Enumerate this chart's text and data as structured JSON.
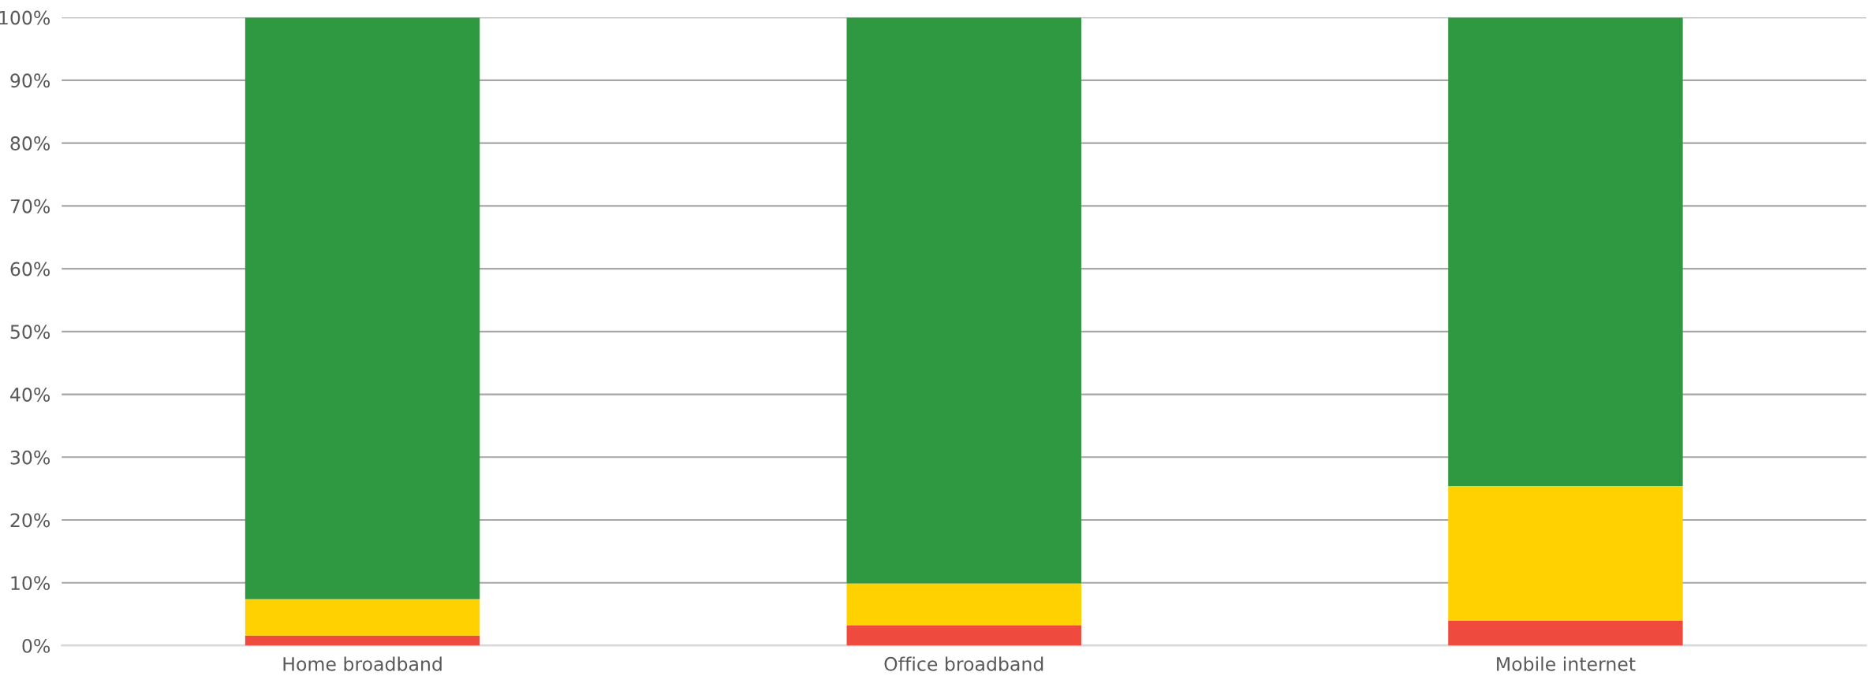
{
  "chart_data": {
    "type": "bar",
    "stacked": true,
    "categories": [
      "Home broadband",
      "Office broadband",
      "Mobile internet"
    ],
    "series": [
      {
        "color": "#ee4b3e",
        "values": [
          1.6,
          3.2,
          4.0
        ]
      },
      {
        "color": "#ffd100",
        "values": [
          5.8,
          6.7,
          21.4
        ]
      },
      {
        "color": "#2e9940",
        "values": [
          92.6,
          90.1,
          74.6
        ]
      }
    ],
    "ylim": [
      0,
      100
    ],
    "yticks": [
      {
        "value": 0,
        "label": "0%"
      },
      {
        "value": 10,
        "label": "10%"
      },
      {
        "value": 20,
        "label": "20%"
      },
      {
        "value": 30,
        "label": "30%"
      },
      {
        "value": 40,
        "label": "40%"
      },
      {
        "value": 50,
        "label": "50%"
      },
      {
        "value": 60,
        "label": "60%"
      },
      {
        "value": 70,
        "label": "70%"
      },
      {
        "value": 80,
        "label": "80%"
      },
      {
        "value": 90,
        "label": "90%"
      },
      {
        "value": 100,
        "label": "100%"
      }
    ],
    "grid": "y"
  }
}
